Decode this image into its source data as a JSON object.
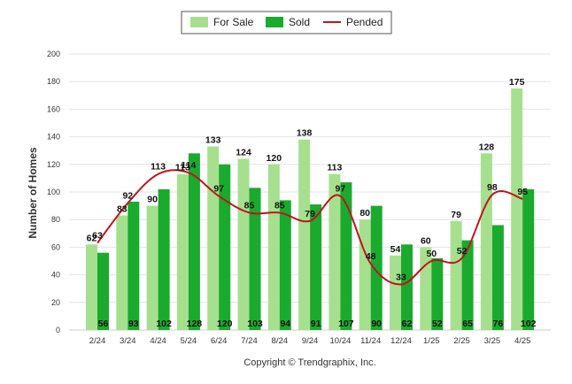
{
  "chart_data": {
    "type": "bar",
    "title": "",
    "xlabel": "",
    "ylabel": "Number of Homes",
    "ylim": [
      0,
      200
    ],
    "yticks": [
      0,
      20,
      40,
      60,
      80,
      100,
      120,
      140,
      160,
      180,
      200
    ],
    "grid": true,
    "legend_placement": "top-center",
    "categories": [
      "2/24",
      "3/24",
      "4/24",
      "5/24",
      "6/24",
      "7/24",
      "8/24",
      "9/24",
      "10/24",
      "11/24",
      "12/24",
      "1/25",
      "2/25",
      "3/25",
      "4/25"
    ],
    "series": [
      {
        "name": "For Sale",
        "type": "bar",
        "color": "#a6e08e",
        "values": [
          62,
          83,
          90,
          113,
          133,
          124,
          120,
          138,
          113,
          80,
          54,
          60,
          79,
          128,
          175
        ]
      },
      {
        "name": "Sold",
        "type": "bar",
        "color": "#1aaa2e",
        "values": [
          56,
          93,
          102,
          128,
          120,
          103,
          94,
          91,
          107,
          90,
          62,
          52,
          65,
          76,
          102
        ]
      },
      {
        "name": "Pended",
        "type": "line",
        "color": "#c0141c",
        "values": [
          63,
          92,
          113,
          114,
          97,
          85,
          85,
          79,
          97,
          48,
          33,
          50,
          52,
          98,
          95
        ]
      }
    ],
    "footer": "Copyright © Trendgraphix, Inc."
  }
}
